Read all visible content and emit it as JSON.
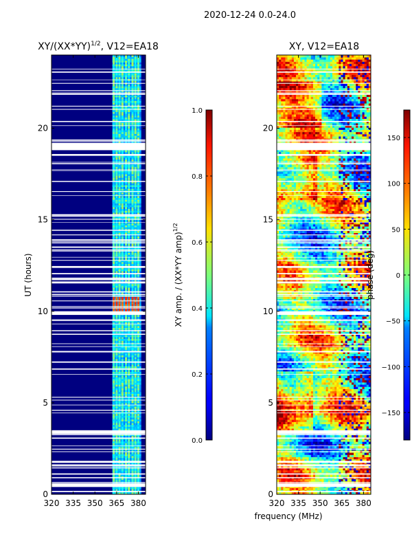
{
  "figure": {
    "suptitle": "2020-12-24 0.0-24.0",
    "xlabel": "frequency (MHz)",
    "bg_color": "#ffffff"
  },
  "chart_data": [
    {
      "type": "heatmap",
      "title": "XY/(XX*YY)",
      "title_sup": "1/2",
      "title_suffix": ", V12=EA18",
      "xlabel": "",
      "ylabel": "UT (hours)",
      "xlim": [
        320,
        385
      ],
      "ylim": [
        0,
        24
      ],
      "xticks": [
        320,
        335,
        350,
        365,
        380
      ],
      "yticks": [
        0,
        5,
        10,
        15,
        20
      ],
      "colormap": "jet",
      "colorbar": {
        "label": "XY amp. / (XX*YY amp)",
        "label_sup": "1/2",
        "range": [
          0.0,
          1.0
        ],
        "ticks": [
          0.0,
          0.2,
          0.4,
          0.6,
          0.8,
          1.0
        ],
        "tick_labels": [
          "0.0",
          "0.2",
          "0.4",
          "0.6",
          "0.8",
          "1.0"
        ]
      },
      "background_value": 0.0,
      "active_band_mhz": [
        362,
        382
      ],
      "active_channels_mhz": [
        363,
        365,
        367,
        369,
        371.5,
        373.5,
        376,
        378,
        380
      ],
      "active_value_range": [
        0.3,
        0.55
      ],
      "hot_spot": {
        "time_hours": [
          9.9,
          10.8
        ],
        "freq_mhz": [
          362,
          381
        ],
        "value": 0.85
      },
      "flagged_time_ranges_hours": [
        [
          18.8,
          19.2
        ],
        [
          9.8,
          10.0
        ],
        [
          3.3,
          3.5
        ],
        [
          0.4,
          0.6
        ]
      ]
    },
    {
      "type": "heatmap",
      "title": "XY, V12=EA18",
      "xlabel": "",
      "ylabel": "",
      "xlim": [
        320,
        385
      ],
      "ylim": [
        0,
        24
      ],
      "xticks": [
        320,
        335,
        350,
        365,
        380
      ],
      "yticks": [
        0,
        5,
        10,
        15,
        20
      ],
      "colormap": "jet",
      "colorbar": {
        "label": "phase (deg)",
        "range": [
          -180,
          180
        ],
        "ticks": [
          -150,
          -100,
          -50,
          0,
          50,
          100,
          150
        ],
        "tick_labels": [
          "−150",
          "−100",
          "−50",
          "0",
          "50",
          "100",
          "150"
        ]
      },
      "flagged_time_ranges_hours": [
        [
          18.8,
          19.2
        ],
        [
          9.8,
          10.0
        ],
        [
          3.3,
          3.5
        ],
        [
          0.4,
          0.6
        ]
      ]
    }
  ]
}
